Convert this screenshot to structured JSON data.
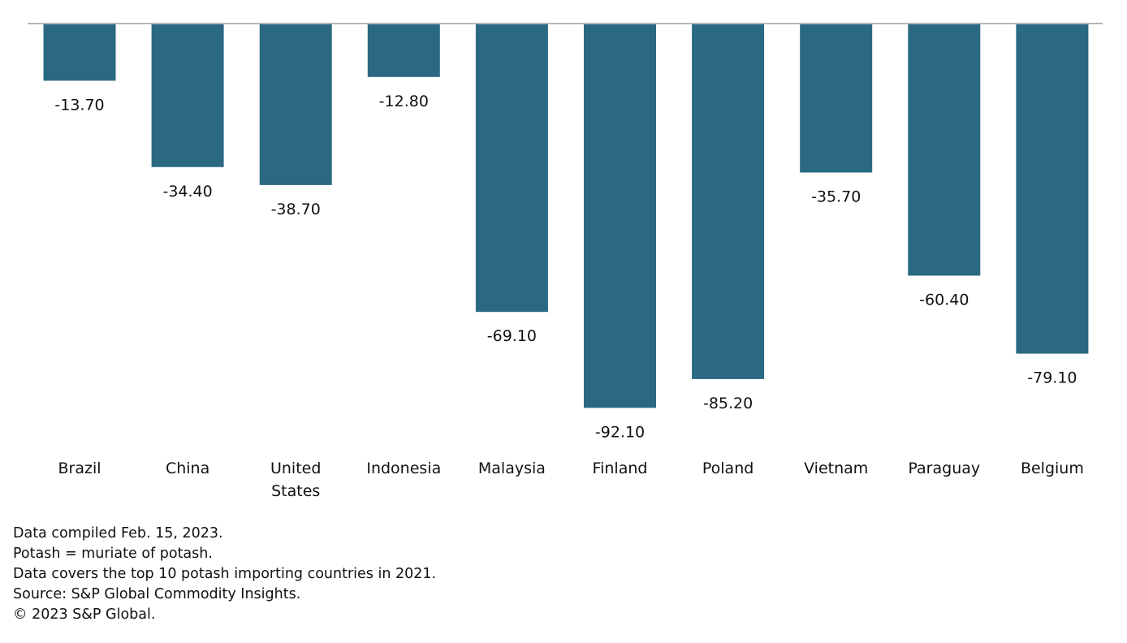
{
  "chart_data": {
    "type": "bar",
    "title": "",
    "xlabel": "",
    "ylabel": "",
    "categories": [
      "Brazil",
      "China",
      "United States",
      "Indonesia",
      "Malaysia",
      "Finland",
      "Poland",
      "Vietnam",
      "Paraguay",
      "Belgium"
    ],
    "category_lines": [
      [
        "Brazil"
      ],
      [
        "China"
      ],
      [
        "United",
        "States"
      ],
      [
        "Indonesia"
      ],
      [
        "Malaysia"
      ],
      [
        "Finland"
      ],
      [
        "Poland"
      ],
      [
        "Vietnam"
      ],
      [
        "Paraguay"
      ],
      [
        "Belgium"
      ]
    ],
    "series": [
      {
        "values": [
          -13.7,
          -34.4,
          -38.7,
          -12.8,
          -69.1,
          -92.1,
          -85.2,
          -35.7,
          -60.4,
          -79.1
        ],
        "data_labels": [
          "-13.70",
          "-34.40",
          "-38.70",
          "-12.80",
          "-69.10",
          "-92.10",
          "-85.20",
          "-35.70",
          "-60.40",
          "-79.10"
        ]
      }
    ],
    "ylim": [
      -100,
      0
    ],
    "grid": false,
    "legend": "none"
  },
  "colors": {
    "bar": "#2b6983",
    "baseline": "#b4b4b4",
    "text": "#111111"
  },
  "notes": [
    "Data compiled Feb. 15, 2023.",
    "Potash = muriate of potash.",
    "Data covers the top 10 potash importing countries in 2021.",
    "Source: S&P Global Commodity Insights.",
    "© 2023 S&P Global."
  ]
}
